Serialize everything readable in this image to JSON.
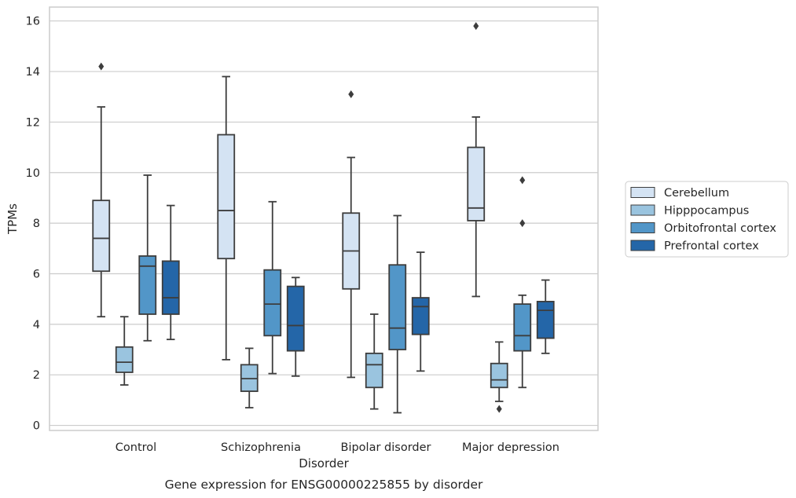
{
  "chart_data": {
    "type": "box",
    "title": "",
    "caption": "Gene expression for ENSG00000225855 by disorder",
    "xlabel": "Disorder",
    "ylabel": "TPMs",
    "ylim": [
      -0.2,
      16.55
    ],
    "yticks": [
      0,
      2,
      4,
      6,
      8,
      10,
      12,
      14,
      16
    ],
    "grid": "horizontal",
    "legend_position": "outside-right",
    "categories": [
      "Control",
      "Schizophrenia",
      "Bipolar disorder",
      "Major depression"
    ],
    "series": [
      {
        "name": "Cerebellum",
        "color": "#d4e3f3",
        "boxes": [
          {
            "whislo": 4.3,
            "q1": 6.1,
            "median": 7.4,
            "q3": 8.9,
            "whishi": 12.6,
            "fliers": [
              14.2
            ]
          },
          {
            "whislo": 2.6,
            "q1": 6.6,
            "median": 8.5,
            "q3": 11.5,
            "whishi": 13.8,
            "fliers": []
          },
          {
            "whislo": 1.9,
            "q1": 5.4,
            "median": 6.9,
            "q3": 8.4,
            "whishi": 10.6,
            "fliers": [
              13.1
            ]
          },
          {
            "whislo": 5.1,
            "q1": 8.1,
            "median": 8.6,
            "q3": 11.0,
            "whishi": 12.2,
            "fliers": [
              15.8
            ]
          }
        ]
      },
      {
        "name": "Hipppocampus",
        "color": "#9ac4df",
        "boxes": [
          {
            "whislo": 1.6,
            "q1": 2.1,
            "median": 2.5,
            "q3": 3.1,
            "whishi": 4.3,
            "fliers": []
          },
          {
            "whislo": 0.7,
            "q1": 1.35,
            "median": 1.85,
            "q3": 2.4,
            "whishi": 3.05,
            "fliers": []
          },
          {
            "whislo": 0.65,
            "q1": 1.5,
            "median": 2.4,
            "q3": 2.85,
            "whishi": 4.4,
            "fliers": []
          },
          {
            "whislo": 0.95,
            "q1": 1.5,
            "median": 1.8,
            "q3": 2.45,
            "whishi": 3.3,
            "fliers": [
              0.65
            ]
          }
        ]
      },
      {
        "name": "Orbitofrontal cortex",
        "color": "#5296c8",
        "boxes": [
          {
            "whislo": 3.35,
            "q1": 4.4,
            "median": 6.3,
            "q3": 6.7,
            "whishi": 9.9,
            "fliers": []
          },
          {
            "whislo": 2.05,
            "q1": 3.55,
            "median": 4.8,
            "q3": 6.15,
            "whishi": 8.85,
            "fliers": []
          },
          {
            "whislo": 0.5,
            "q1": 3.0,
            "median": 3.85,
            "q3": 6.35,
            "whishi": 8.3,
            "fliers": []
          },
          {
            "whislo": 1.5,
            "q1": 2.95,
            "median": 3.55,
            "q3": 4.8,
            "whishi": 5.15,
            "fliers": [
              9.7,
              8.0
            ]
          }
        ]
      },
      {
        "name": "Prefrontal cortex",
        "color": "#2466a8",
        "boxes": [
          {
            "whislo": 3.4,
            "q1": 4.4,
            "median": 5.05,
            "q3": 6.5,
            "whishi": 8.7,
            "fliers": []
          },
          {
            "whislo": 1.95,
            "q1": 2.95,
            "median": 3.95,
            "q3": 5.5,
            "whishi": 5.85,
            "fliers": []
          },
          {
            "whislo": 2.15,
            "q1": 3.6,
            "median": 4.7,
            "q3": 5.05,
            "whishi": 6.85,
            "fliers": []
          },
          {
            "whislo": 2.85,
            "q1": 3.45,
            "median": 4.55,
            "q3": 4.9,
            "whishi": 5.75,
            "fliers": []
          }
        ]
      }
    ]
  }
}
